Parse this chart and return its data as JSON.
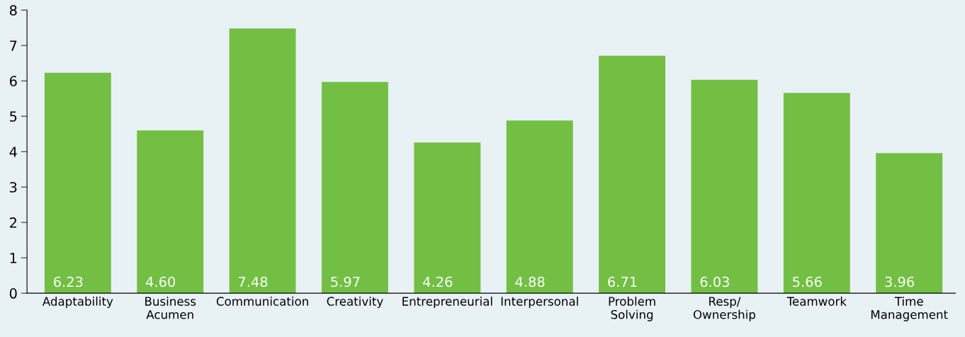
{
  "chart_data": {
    "type": "bar",
    "categories": [
      "Adaptability",
      "Business\nAcumen",
      "Communication",
      "Creativity",
      "Entrepreneurial",
      "Interpersonal",
      "Problem\nSolving",
      "Resp/\nOwnership",
      "Teamwork",
      "Time\nManagement"
    ],
    "values": [
      6.23,
      4.6,
      7.48,
      5.97,
      4.26,
      4.88,
      6.71,
      6.03,
      5.66,
      3.96
    ],
    "value_labels": [
      "6.23",
      "4.60",
      "7.48",
      "5.97",
      "4.26",
      "4.88",
      "6.71",
      "6.03",
      "5.66",
      "3.96"
    ],
    "color": "#72bf44",
    "ylim": [
      0,
      8
    ],
    "yticks": [
      0,
      1,
      2,
      3,
      4,
      5,
      6,
      7,
      8
    ],
    "grid": false,
    "legend": false
  }
}
